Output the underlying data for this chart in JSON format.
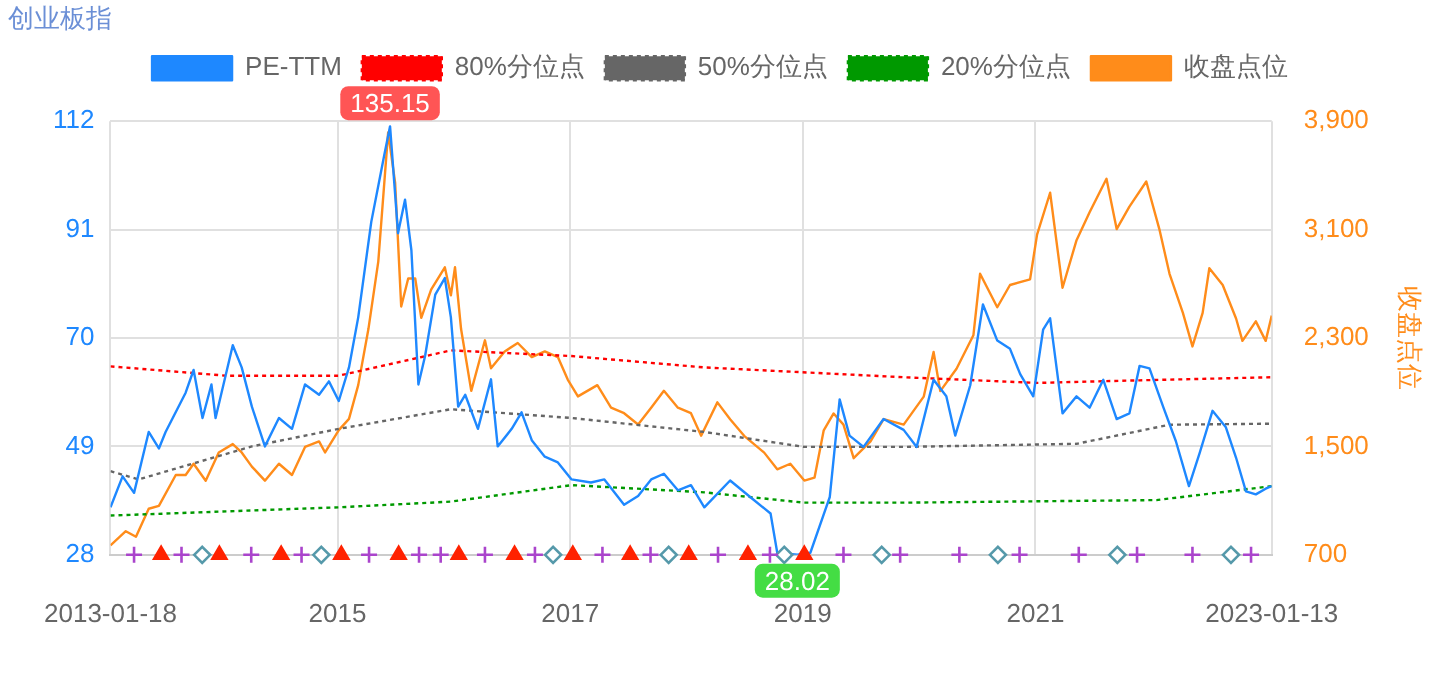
{
  "chart_data": {
    "type": "line",
    "title": "创业板指",
    "y2label": "收盘点位",
    "legend": "top",
    "grid": true,
    "line_style": "solid",
    "marker": "none",
    "xlim": [
      "2013-01-18",
      "2023-01-13"
    ],
    "xticks": [
      "2013-01-18",
      "2015",
      "2017",
      "2019",
      "2021",
      "2023-01-13"
    ],
    "ylim": [
      28,
      112
    ],
    "yticks": [
      28,
      49,
      70,
      91,
      112
    ],
    "y2lim": [
      700,
      3900
    ],
    "y2ticks": [
      {
        "value": 700,
        "label": "700"
      },
      {
        "value": 1500,
        "label": "1,500"
      },
      {
        "value": 2300,
        "label": "2,300"
      },
      {
        "value": 3100,
        "label": "3,100"
      },
      {
        "value": 3900,
        "label": "3,900"
      }
    ],
    "annotations": [
      {
        "text": "135.15",
        "x": "2015-06-15",
        "y": 112
      },
      {
        "text": "28.02",
        "x": "2018-12-15",
        "y": 28.02
      }
    ],
    "series": [
      {
        "name": "PE-TTM",
        "color": "#1e88ff",
        "x": [
          "2013-01-18",
          "2013-02-25",
          "2013-04-02",
          "2013-05-18",
          "2013-06-19",
          "2013-07-10",
          "2013-09-11",
          "2013-10-06",
          "2013-11-03",
          "2013-12-01",
          "2013-12-14",
          "2014-02-06",
          "2014-03-06",
          "2014-04-07",
          "2014-05-18",
          "2014-07-01",
          "2014-08-11",
          "2014-09-21",
          "2014-11-04",
          "2014-12-05",
          "2015-01-05",
          "2015-02-06",
          "2015-03-07",
          "2015-04-17",
          "2015-05-28",
          "2015-06-15",
          "2015-07-10",
          "2015-08-01",
          "2015-08-21",
          "2015-09-12",
          "2015-10-03",
          "2015-11-04",
          "2015-12-04",
          "2015-12-23",
          "2016-01-15",
          "2016-02-06",
          "2016-03-17",
          "2016-04-27",
          "2016-05-18",
          "2016-07-01",
          "2016-08-01",
          "2016-09-02",
          "2016-10-13",
          "2016-11-23",
          "2017-01-05",
          "2017-03-07",
          "2017-04-18",
          "2017-06-19",
          "2017-08-02",
          "2017-09-12",
          "2017-10-22",
          "2017-12-05",
          "2018-01-15",
          "2018-02-26",
          "2018-05-18",
          "2018-07-20",
          "2018-09-22",
          "2018-10-13",
          "2018-12-15",
          "2019-01-25",
          "2019-03-27",
          "2019-04-27",
          "2019-05-28",
          "2019-07-11",
          "2019-09-12",
          "2019-11-14",
          "2019-12-25",
          "2020-02-16",
          "2020-03-27",
          "2020-04-24",
          "2020-06-10",
          "2020-07-20",
          "2020-09-03",
          "2020-10-13",
          "2020-11-14",
          "2020-12-25",
          "2021-01-25",
          "2021-02-16",
          "2021-03-27",
          "2021-05-10",
          "2021-06-20",
          "2021-08-02",
          "2021-09-13",
          "2021-10-23",
          "2021-11-24",
          "2021-12-25",
          "2022-02-07",
          "2022-03-18",
          "2022-04-28",
          "2022-06-01",
          "2022-07-11",
          "2022-08-22",
          "2022-09-23",
          "2022-10-24",
          "2022-11-24",
          "2022-12-25",
          "2023-01-13"
        ],
        "values": [
          37.2,
          43.2,
          40,
          51.8,
          48.6,
          51.8,
          59.4,
          63.8,
          54.5,
          61,
          54.5,
          68.6,
          64.3,
          56.7,
          49,
          54.5,
          52.4,
          61,
          59,
          61.6,
          57.8,
          64.3,
          74,
          92.5,
          105.5,
          111,
          90.3,
          96.8,
          87,
          61,
          66.5,
          78.4,
          81.6,
          74,
          56.7,
          59,
          52.4,
          62,
          49,
          52.4,
          55.6,
          50.2,
          47,
          45.9,
          42.6,
          42,
          42.6,
          37.7,
          39.4,
          42.6,
          43.7,
          40.5,
          41.5,
          37.2,
          42.4,
          39.2,
          36,
          28.4,
          28.02,
          28.4,
          39.2,
          58.1,
          51.1,
          48.9,
          54.3,
          52.2,
          48.9,
          61.9,
          58.7,
          51.1,
          60.8,
          76.5,
          69.5,
          67.9,
          63,
          58.7,
          71.6,
          73.8,
          55.4,
          58.7,
          56.5,
          61.9,
          54.3,
          55.4,
          64.6,
          64.1,
          56.5,
          50,
          41.3,
          47.8,
          55.9,
          52.7,
          46.8,
          40.3,
          39.7,
          40.8,
          41.3
        ]
      },
      {
        "name": "80%分位点",
        "color": "#ff0000",
        "line_style": "dotted",
        "x": [
          "2013-01-18",
          "2014-01-15",
          "2015-01-05",
          "2015-12-23",
          "2017-01-05",
          "2018-02-26",
          "2019-11-14",
          "2021-01-06",
          "2021-11-24",
          "2023-01-13"
        ],
        "values": [
          64.5,
          62.7,
          62.7,
          67.6,
          66.5,
          64.3,
          62.4,
          61.3,
          61.8,
          62.4
        ]
      },
      {
        "name": "50%分位点",
        "color": "#666666",
        "line_style": "dotted",
        "x": [
          "2013-01-18",
          "2013-04-16",
          "2014-04-07",
          "2015-01-05",
          "2015-12-23",
          "2017-01-05",
          "2018-02-26",
          "2019-01-06",
          "2019-11-14",
          "2021-05-10",
          "2022-02-26",
          "2023-01-13"
        ],
        "values": [
          44.2,
          42.6,
          49,
          52.4,
          56.2,
          54.5,
          51.8,
          48.9,
          48.9,
          49.5,
          53.2,
          53.4
        ]
      },
      {
        "name": "20%分位点",
        "color": "#009900",
        "line_style": "dotted",
        "x": [
          "2013-01-18",
          "2015-01-05",
          "2015-12-23",
          "2017-01-05",
          "2018-02-26",
          "2019-01-06",
          "2019-11-14",
          "2022-01-16",
          "2023-01-13"
        ],
        "values": [
          35.6,
          37.2,
          38.3,
          41.5,
          40.1,
          38.1,
          38.1,
          38.6,
          41.3
        ]
      },
      {
        "name": "收盘点位",
        "color": "#ff8c1a",
        "axis": "y2",
        "x": [
          "2013-01-18",
          "2013-03-07",
          "2013-04-08",
          "2013-05-18",
          "2013-06-19",
          "2013-08-11",
          "2013-09-11",
          "2013-10-06",
          "2013-11-13",
          "2013-12-24",
          "2014-02-06",
          "2014-03-06",
          "2014-04-07",
          "2014-05-18",
          "2014-07-01",
          "2014-08-11",
          "2014-09-21",
          "2014-11-04",
          "2014-11-23",
          "2015-01-05",
          "2015-02-06",
          "2015-03-07",
          "2015-04-08",
          "2015-05-09",
          "2015-06-09",
          "2015-07-01",
          "2015-07-20",
          "2015-08-11",
          "2015-09-02",
          "2015-09-21",
          "2015-10-22",
          "2015-12-04",
          "2015-12-23",
          "2016-01-05",
          "2016-01-24",
          "2016-02-25",
          "2016-04-08",
          "2016-04-27",
          "2016-06-09",
          "2016-07-20",
          "2016-09-02",
          "2016-10-13",
          "2016-11-23",
          "2016-12-24",
          "2017-01-25",
          "2017-03-27",
          "2017-05-09",
          "2017-06-19",
          "2017-08-02",
          "2017-09-12",
          "2017-10-22",
          "2017-12-05",
          "2018-01-15",
          "2018-02-16",
          "2018-04-08",
          "2018-05-18",
          "2018-07-01",
          "2018-09-02",
          "2018-10-13",
          "2018-11-23",
          "2019-01-06",
          "2019-02-07",
          "2019-03-08",
          "2019-04-08",
          "2019-05-09",
          "2019-06-10",
          "2019-08-02",
          "2019-09-12",
          "2019-11-14",
          "2020-01-16",
          "2020-02-16",
          "2020-03-08",
          "2020-04-28",
          "2020-06-20",
          "2020-07-11",
          "2020-09-03",
          "2020-10-13",
          "2020-12-15",
          "2021-01-06",
          "2021-02-16",
          "2021-03-27",
          "2021-05-10",
          "2021-06-20",
          "2021-08-12",
          "2021-09-13",
          "2021-10-23",
          "2021-12-15",
          "2022-01-25",
          "2022-02-26",
          "2022-04-09",
          "2022-05-09",
          "2022-06-10",
          "2022-07-01",
          "2022-08-12",
          "2022-09-23",
          "2022-10-13",
          "2022-11-24",
          "2022-12-25",
          "2023-01-13"
        ],
        "values": [
          770,
          874,
          833,
          1040,
          1061,
          1289,
          1289,
          1372,
          1247,
          1455,
          1517,
          1455,
          1351,
          1247,
          1372,
          1289,
          1496,
          1537,
          1455,
          1620,
          1703,
          1952,
          2366,
          2864,
          3817,
          3444,
          2532,
          2739,
          2739,
          2449,
          2657,
          2822,
          2615,
          2822,
          2366,
          1910,
          2283,
          2076,
          2201,
          2263,
          2159,
          2201,
          2159,
          1993,
          1869,
          1952,
          1786,
          1745,
          1662,
          1786,
          1910,
          1786,
          1745,
          1579,
          1825,
          1701,
          1578,
          1454,
          1331,
          1372,
          1248,
          1269,
          1619,
          1743,
          1661,
          1413,
          1537,
          1701,
          1661,
          1867,
          2197,
          1908,
          2073,
          2320,
          2774,
          2527,
          2691,
          2733,
          3063,
          3372,
          2671,
          3022,
          3228,
          3475,
          3104,
          3269,
          3455,
          3104,
          2774,
          2485,
          2238,
          2485,
          2815,
          2691,
          2444,
          2279,
          2423,
          2279,
          2465
        ]
      },
      {
        "type": "scatter",
        "marker": "cross",
        "color": "#aa44cc",
        "x": [
          "2013-04-02",
          "2013-08-29",
          "2014-04-05",
          "2014-09-10",
          "2015-04-10",
          "2015-09-14",
          "2015-11-21",
          "2016-04-08",
          "2016-09-12",
          "2017-04-12",
          "2017-09-10",
          "2018-04-10",
          "2018-09-20",
          "2019-05-09",
          "2019-11-03",
          "2020-05-07",
          "2020-11-12",
          "2021-05-17",
          "2021-11-16",
          "2022-05-09",
          "2022-11-09"
        ],
        "values": [
          28,
          28,
          28,
          28,
          28,
          28,
          28,
          28,
          28,
          28,
          28,
          28,
          28,
          28,
          28,
          28,
          28,
          28,
          28,
          28,
          28
        ]
      },
      {
        "type": "scatter",
        "marker": "triangle",
        "color": "#ff2200",
        "x": [
          "2013-06-26",
          "2013-12-26",
          "2014-07-08",
          "2015-01-13",
          "2015-07-12",
          "2016-01-17",
          "2016-07-10",
          "2017-01-09",
          "2017-07-08",
          "2018-01-08",
          "2018-07-13",
          "2019-01-06"
        ],
        "values": [
          28,
          28,
          28,
          28,
          28,
          28,
          28,
          28,
          28,
          28,
          28,
          28
        ]
      },
      {
        "type": "scatter",
        "marker": "diamond",
        "color": "#5599aa",
        "x": [
          "2013-11-02",
          "2014-11-11",
          "2016-11-08",
          "2017-11-06",
          "2018-11-04",
          "2019-09-06",
          "2020-09-05",
          "2021-09-15",
          "2022-09-07"
        ],
        "values": [
          28,
          28,
          28,
          28,
          28,
          28,
          28,
          28,
          28
        ]
      }
    ]
  }
}
